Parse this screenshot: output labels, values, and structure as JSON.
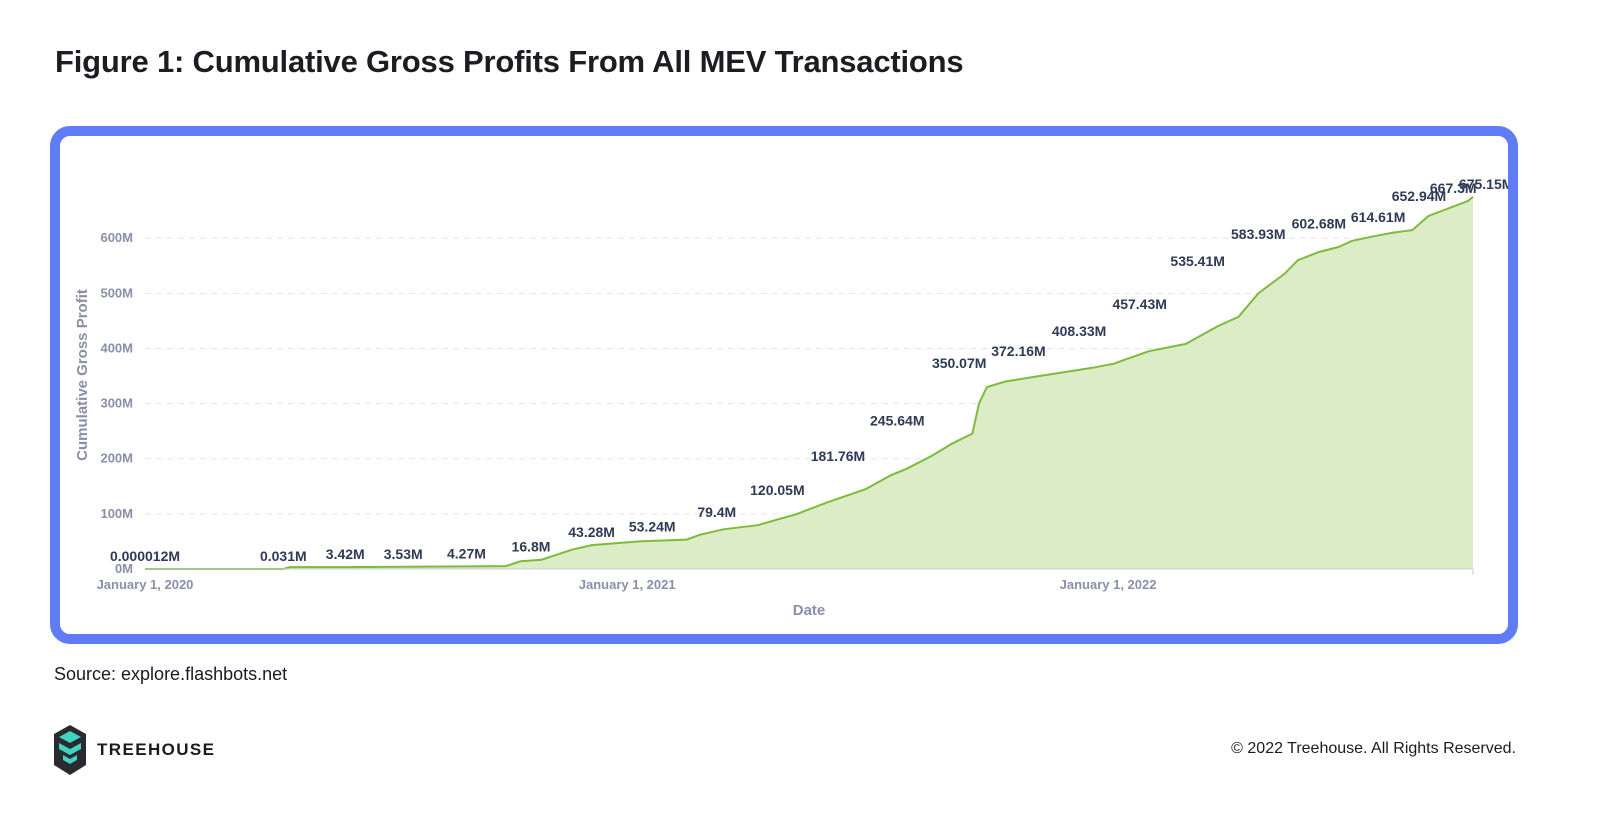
{
  "header": {
    "title": "Figure 1: Cumulative Gross Profits From All MEV Transactions"
  },
  "footer": {
    "source": "Source: explore.flashbots.net",
    "brand": "TREEHOUSE",
    "copyright": "© 2022 Treehouse. All Rights Reserved."
  },
  "colors": {
    "frame": "#5f7cf4",
    "line": "#7dbb3b",
    "fill": "#dcecc7",
    "annotation": "#2f3a55",
    "axis_text": "#8a8fa8",
    "logo_teal": "#3fd3c0",
    "logo_dark": "#2a2a30"
  },
  "chart_data": {
    "type": "area",
    "title": "",
    "xlabel": "Date",
    "ylabel": "Cumulative Gross Profit",
    "x_ticks": [
      "January 1, 2020",
      "January 1, 2021",
      "January 1, 2022"
    ],
    "y_ticks": [
      "0M",
      "100M",
      "200M",
      "300M",
      "400M",
      "500M",
      "600M"
    ],
    "ylim": [
      0,
      700
    ],
    "xlim": [
      "2020-01-01",
      "2022-10-05"
    ],
    "grid": true,
    "series": [
      {
        "values": [
          [
            "2020-01-01",
            1.2e-05
          ],
          [
            "2020-04-15",
            0.031
          ],
          [
            "2020-04-20",
            3.42
          ],
          [
            "2020-06-01",
            3.53
          ],
          [
            "2020-08-01",
            4.27
          ],
          [
            "2020-10-01",
            5.2
          ],
          [
            "2020-10-12",
            14.0
          ],
          [
            "2020-10-28",
            16.8
          ],
          [
            "2020-11-20",
            35.0
          ],
          [
            "2020-12-05",
            43.28
          ],
          [
            "2021-01-10",
            50.0
          ],
          [
            "2021-02-15",
            53.24
          ],
          [
            "2021-02-25",
            62.0
          ],
          [
            "2021-03-15",
            72.0
          ],
          [
            "2021-04-10",
            79.4
          ],
          [
            "2021-05-10",
            100.0
          ],
          [
            "2021-06-01",
            120.05
          ],
          [
            "2021-07-01",
            145.0
          ],
          [
            "2021-07-20",
            170.0
          ],
          [
            "2021-08-01",
            181.76
          ],
          [
            "2021-08-20",
            205.0
          ],
          [
            "2021-09-05",
            228.0
          ],
          [
            "2021-09-20",
            245.64
          ],
          [
            "2021-09-25",
            300.0
          ],
          [
            "2021-10-01",
            330.0
          ],
          [
            "2021-10-15",
            340.0
          ],
          [
            "2021-11-10",
            350.07
          ],
          [
            "2021-12-20",
            365.0
          ],
          [
            "2022-01-05",
            372.16
          ],
          [
            "2022-02-01",
            395.0
          ],
          [
            "2022-03-01",
            408.33
          ],
          [
            "2022-03-25",
            440.0
          ],
          [
            "2022-04-10",
            457.43
          ],
          [
            "2022-04-25",
            500.0
          ],
          [
            "2022-05-15",
            535.41
          ],
          [
            "2022-05-25",
            560.0
          ],
          [
            "2022-06-10",
            575.0
          ],
          [
            "2022-06-25",
            583.93
          ],
          [
            "2022-07-05",
            595.0
          ],
          [
            "2022-07-20",
            602.68
          ],
          [
            "2022-08-05",
            610.0
          ],
          [
            "2022-08-20",
            614.61
          ],
          [
            "2022-09-01",
            640.0
          ],
          [
            "2022-09-15",
            652.94
          ],
          [
            "2022-10-01",
            667.3
          ],
          [
            "2022-10-05",
            675.15
          ]
        ]
      }
    ],
    "annotations": [
      {
        "label": "0.000012M",
        "date": "2020-01-01",
        "value": 1.2e-05
      },
      {
        "label": "0.031M",
        "date": "2020-04-15",
        "value": 0.031
      },
      {
        "label": "3.42M",
        "date": "2020-06-01",
        "value": 3.42
      },
      {
        "label": "3.53M",
        "date": "2020-07-15",
        "value": 3.53
      },
      {
        "label": "4.27M",
        "date": "2020-09-01",
        "value": 4.27
      },
      {
        "label": "16.8M",
        "date": "2020-10-20",
        "value": 16.8
      },
      {
        "label": "43.28M",
        "date": "2020-12-05",
        "value": 43.28
      },
      {
        "label": "53.24M",
        "date": "2021-01-20",
        "value": 53.24
      },
      {
        "label": "79.4M",
        "date": "2021-03-10",
        "value": 79.4
      },
      {
        "label": "120.05M",
        "date": "2021-04-25",
        "value": 120.05
      },
      {
        "label": "181.76M",
        "date": "2021-06-10",
        "value": 181.76
      },
      {
        "label": "245.64M",
        "date": "2021-07-25",
        "value": 245.64
      },
      {
        "label": "350.07M",
        "date": "2021-09-10",
        "value": 350.07
      },
      {
        "label": "372.16M",
        "date": "2021-10-25",
        "value": 372.16
      },
      {
        "label": "408.33M",
        "date": "2021-12-10",
        "value": 408.33
      },
      {
        "label": "457.43M",
        "date": "2022-01-25",
        "value": 457.43
      },
      {
        "label": "535.41M",
        "date": "2022-03-10",
        "value": 535.41
      },
      {
        "label": "583.93M",
        "date": "2022-04-25",
        "value": 583.93
      },
      {
        "label": "602.68M",
        "date": "2022-06-10",
        "value": 602.68
      },
      {
        "label": "614.61M",
        "date": "2022-07-25",
        "value": 614.61
      },
      {
        "label": "652.94M",
        "date": "2022-08-25",
        "value": 652.94
      },
      {
        "label": "667.3M",
        "date": "2022-09-20",
        "value": 667.3
      },
      {
        "label": "675.15M",
        "date": "2022-10-15",
        "value": 675.15
      }
    ]
  }
}
